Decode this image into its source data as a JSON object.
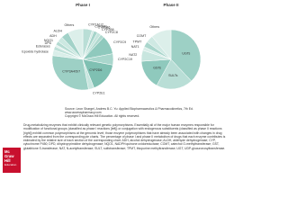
{
  "chart_data": [
    {
      "type": "pie",
      "title": "Phase I",
      "categories": [
        "CYP1A1/2",
        "CYP1B1",
        "CYP2A6",
        "CYP2B6",
        "CYP2C8",
        "CYP2C9",
        "CYP2C19",
        "CYP2D6",
        "CYP2E1",
        "CYP3A4/5/7",
        "Epoxide hydrolase",
        "Esterases",
        "DPD",
        "NQO1",
        "ADH",
        "ALDH",
        "Others"
      ],
      "values": [
        5,
        1,
        2,
        2,
        2,
        10,
        6,
        16,
        3,
        30,
        3,
        2,
        1,
        2,
        3,
        4,
        8
      ],
      "colors": [
        "#b9ded6",
        "#cfe9e3",
        "#a6d4ca",
        "#c4e4dc",
        "#b0d9cf",
        "#8fc9bd",
        "#a9d6cc",
        "#7fc0b2",
        "#c8e6df",
        "#9dd0c5",
        "#d9eee9",
        "#bfe1d9",
        "#e2f2ee",
        "#b4dbd2",
        "#cce8e1",
        "#a2d2c8",
        "#dcefea"
      ]
    },
    {
      "type": "pie",
      "title": "Phase II",
      "categories": [
        "UGTs",
        "SULTs",
        "GSTs",
        "NAT2",
        "NAT1",
        "TPMT",
        "COMT",
        "Others"
      ],
      "values": [
        38,
        20,
        16,
        6,
        2,
        3,
        4,
        11
      ],
      "colors": [
        "#9dd0c5",
        "#b9ded6",
        "#8fc9bd",
        "#c8e6df",
        "#d9eee9",
        "#a9d6cc",
        "#cfe9e3",
        "#dcefea"
      ]
    }
  ],
  "source": [
    "Source: Leon Shargel, Andrew B.C. Yu: Applied Biopharmaceutics & Pharmacokinetics, 7th Ed.",
    "www.accesspharmacy.com",
    "Copyright © McGraw-Hill Education. All rights reserved."
  ],
  "caption": "Drug-metabolizing enzymes that exhibit clinically relevant genetic polymorphisms. Essentially all of the major human enzymes responsible for modification of functional groups (classified as phase I reactions [left]) or conjugation with endogenous substituents (classified as phase II reactions [right]) exhibit common polymorphisms at the genomic level; those enzyme polymorphisms that have already been associated with changes in drug effects are separated from the corresponding pie charts. The percentage of phase I and phase II metabolism of drugs that each enzyme contributes is estimated by the relative size of each section of the corresponding chart. ADH, alcohol dehydrogenase; ALDH, aldehyde dehydrogenase; CYP, cytochrome P450; DPD, dihydropyrimidine dehydrogenase; NQO1, NADPH:quinone oxidoreductase; COMT, catechol O-methyltransferase; GST, glutathione S-transferase; NAT, N-acetyltransferase; SULT, sulfotransferase; TPMT, thiopurine methyltransferase; UGT, UDP-glucuronosyltransferase.",
  "logo": [
    "Mc",
    "Graw",
    "Hill",
    "Education"
  ]
}
